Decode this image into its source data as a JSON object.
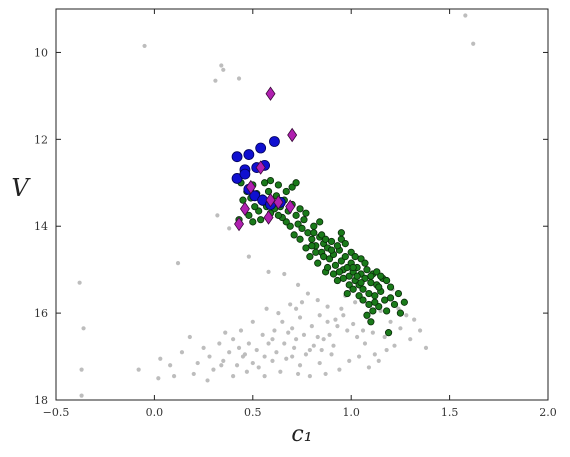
{
  "chart_data": {
    "type": "scatter",
    "title": "",
    "xlabel": "c₁",
    "ylabel": "V",
    "xlim": [
      -0.5,
      2.0
    ],
    "ylim": [
      18,
      9
    ],
    "y_inverted": true,
    "grid": false,
    "x_ticks": [
      -0.5,
      0.0,
      0.5,
      1.0,
      1.5,
      2.0
    ],
    "x_tick_labels": [
      "−0.5",
      "0.0",
      "0.5",
      "1.0",
      "1.5",
      "2.0"
    ],
    "y_ticks": [
      10,
      12,
      14,
      16,
      18
    ],
    "y_tick_labels": [
      "10",
      "12",
      "14",
      "16",
      "18"
    ],
    "series": [
      {
        "color": "#bdbdbd",
        "marker": "circle",
        "points": [
          [
            -0.05,
            9.85
          ],
          [
            1.58,
            9.15
          ],
          [
            1.62,
            9.8
          ],
          [
            0.34,
            10.3
          ],
          [
            0.35,
            10.4
          ],
          [
            0.43,
            10.6
          ],
          [
            0.31,
            10.65
          ],
          [
            -0.38,
            15.3
          ],
          [
            -0.36,
            16.35
          ],
          [
            -0.37,
            17.3
          ],
          [
            -0.37,
            17.9
          ],
          [
            0.12,
            14.85
          ],
          [
            0.32,
            13.75
          ],
          [
            0.38,
            14.05
          ],
          [
            0.48,
            14.7
          ],
          [
            0.58,
            15.05
          ],
          [
            0.66,
            15.1
          ],
          [
            0.73,
            15.35
          ],
          [
            0.78,
            15.55
          ],
          [
            0.72,
            15.9
          ],
          [
            0.83,
            15.7
          ],
          [
            0.88,
            15.85
          ],
          [
            0.95,
            15.9
          ],
          [
            1.02,
            15.75
          ],
          [
            1.08,
            16.1
          ],
          [
            1.15,
            15.95
          ],
          [
            1.2,
            16.2
          ],
          [
            1.24,
            15.9
          ],
          [
            1.28,
            16.05
          ],
          [
            1.35,
            16.4
          ],
          [
            1.38,
            16.8
          ],
          [
            1.3,
            16.6
          ],
          [
            1.22,
            16.75
          ],
          [
            1.18,
            16.85
          ],
          [
            1.12,
            16.95
          ],
          [
            1.07,
            16.7
          ],
          [
            1.03,
            16.55
          ],
          [
            0.98,
            16.4
          ],
          [
            0.93,
            16.3
          ],
          [
            0.88,
            16.2
          ],
          [
            0.84,
            16.05
          ],
          [
            0.8,
            16.3
          ],
          [
            0.76,
            16.5
          ],
          [
            0.72,
            16.6
          ],
          [
            0.68,
            16.45
          ],
          [
            0.65,
            16.2
          ],
          [
            0.61,
            16.4
          ],
          [
            0.58,
            16.7
          ],
          [
            0.55,
            16.5
          ],
          [
            0.52,
            16.85
          ],
          [
            0.48,
            16.7
          ],
          [
            0.45,
            17.0
          ],
          [
            0.42,
            17.2
          ],
          [
            0.38,
            16.9
          ],
          [
            0.35,
            17.1
          ],
          [
            0.33,
            16.7
          ],
          [
            0.3,
            17.3
          ],
          [
            0.28,
            17.0
          ],
          [
            0.25,
            16.8
          ],
          [
            0.22,
            17.15
          ],
          [
            0.18,
            16.55
          ],
          [
            0.14,
            16.9
          ],
          [
            0.08,
            17.2
          ],
          [
            0.03,
            17.05
          ],
          [
            -0.08,
            17.3
          ],
          [
            0.02,
            17.5
          ],
          [
            0.1,
            17.45
          ],
          [
            0.2,
            17.4
          ],
          [
            0.27,
            17.55
          ],
          [
            0.4,
            17.45
          ],
          [
            0.47,
            17.35
          ],
          [
            0.53,
            17.25
          ],
          [
            0.6,
            17.1
          ],
          [
            0.64,
            17.35
          ],
          [
            0.7,
            17.0
          ],
          [
            0.74,
            17.2
          ],
          [
            0.79,
            17.45
          ],
          [
            0.84,
            17.15
          ],
          [
            0.9,
            16.95
          ],
          [
            0.94,
            17.3
          ],
          [
            0.99,
            17.1
          ],
          [
            1.04,
            17.0
          ],
          [
            1.09,
            17.25
          ],
          [
            1.14,
            17.1
          ],
          [
            0.86,
            16.6
          ],
          [
            0.91,
            16.75
          ],
          [
            0.96,
            16.05
          ],
          [
            1.01,
            16.25
          ],
          [
            1.06,
            16.4
          ],
          [
            1.11,
            16.45
          ],
          [
            0.74,
            16.1
          ],
          [
            0.69,
            15.8
          ],
          [
            0.63,
            16.0
          ],
          [
            0.57,
            15.9
          ],
          [
            0.5,
            16.2
          ],
          [
            0.44,
            16.4
          ],
          [
            0.4,
            16.6
          ],
          [
            0.36,
            16.45
          ],
          [
            0.62,
            16.9
          ],
          [
            0.67,
            17.05
          ],
          [
            0.71,
            16.8
          ],
          [
            0.77,
            16.95
          ],
          [
            0.81,
            16.75
          ],
          [
            0.85,
            16.85
          ],
          [
            0.89,
            16.5
          ],
          [
            0.92,
            16.15
          ],
          [
            0.97,
            15.6
          ],
          [
            1.0,
            15.45
          ],
          [
            0.75,
            15.75
          ],
          [
            0.7,
            16.35
          ],
          [
            0.66,
            16.7
          ],
          [
            0.6,
            16.6
          ],
          [
            0.56,
            17.0
          ],
          [
            0.5,
            17.15
          ],
          [
            0.46,
            16.95
          ],
          [
            0.43,
            16.8
          ],
          [
            1.17,
            16.55
          ],
          [
            1.25,
            16.35
          ],
          [
            1.32,
            16.15
          ],
          [
            1.21,
            15.45
          ],
          [
            0.83,
            16.55
          ],
          [
            0.79,
            16.85
          ],
          [
            0.87,
            17.4
          ],
          [
            0.73,
            17.4
          ],
          [
            0.56,
            17.45
          ],
          [
            0.34,
            17.2
          ]
        ]
      },
      {
        "color": "#1a7a1a",
        "marker": "circle",
        "points": [
          [
            0.5,
            13.05
          ],
          [
            0.52,
            13.25
          ],
          [
            0.55,
            13.35
          ],
          [
            0.58,
            13.2
          ],
          [
            0.6,
            13.45
          ],
          [
            0.62,
            13.3
          ],
          [
            0.64,
            13.55
          ],
          [
            0.66,
            13.4
          ],
          [
            0.68,
            13.65
          ],
          [
            0.7,
            13.5
          ],
          [
            0.72,
            13.75
          ],
          [
            0.73,
            13.95
          ],
          [
            0.75,
            14.05
          ],
          [
            0.76,
            13.85
          ],
          [
            0.78,
            14.15
          ],
          [
            0.8,
            14.3
          ],
          [
            0.81,
            14.0
          ],
          [
            0.82,
            14.45
          ],
          [
            0.84,
            14.25
          ],
          [
            0.85,
            14.6
          ],
          [
            0.86,
            14.4
          ],
          [
            0.88,
            14.5
          ],
          [
            0.89,
            14.75
          ],
          [
            0.9,
            14.35
          ],
          [
            0.91,
            14.65
          ],
          [
            0.92,
            14.9
          ],
          [
            0.94,
            14.55
          ],
          [
            0.95,
            14.8
          ],
          [
            0.96,
            15.0
          ],
          [
            0.97,
            14.7
          ],
          [
            0.98,
            14.95
          ],
          [
            0.99,
            15.15
          ],
          [
            1.0,
            14.85
          ],
          [
            1.01,
            15.05
          ],
          [
            1.02,
            15.25
          ],
          [
            1.03,
            14.95
          ],
          [
            1.04,
            15.35
          ],
          [
            1.05,
            15.1
          ],
          [
            1.06,
            15.45
          ],
          [
            1.07,
            15.2
          ],
          [
            1.08,
            15.0
          ],
          [
            1.09,
            15.55
          ],
          [
            1.1,
            15.3
          ],
          [
            1.11,
            15.1
          ],
          [
            1.12,
            15.6
          ],
          [
            1.13,
            15.35
          ],
          [
            1.14,
            15.85
          ],
          [
            1.15,
            15.5
          ],
          [
            1.16,
            15.2
          ],
          [
            1.17,
            15.7
          ],
          [
            1.18,
            15.95
          ],
          [
            1.2,
            15.4
          ],
          [
            1.22,
            15.8
          ],
          [
            1.24,
            15.55
          ],
          [
            1.25,
            16.0
          ],
          [
            1.27,
            15.75
          ],
          [
            1.19,
            16.45
          ],
          [
            1.1,
            16.2
          ],
          [
            1.08,
            16.05
          ],
          [
            0.98,
            15.55
          ],
          [
            0.93,
            15.25
          ],
          [
            0.87,
            15.05
          ],
          [
            0.83,
            14.85
          ],
          [
            0.79,
            14.7
          ],
          [
            0.77,
            14.5
          ],
          [
            0.74,
            14.3
          ],
          [
            0.71,
            14.2
          ],
          [
            0.69,
            14.0
          ],
          [
            0.67,
            13.9
          ],
          [
            0.65,
            13.8
          ],
          [
            0.63,
            13.75
          ],
          [
            0.61,
            13.6
          ],
          [
            0.59,
            13.7
          ],
          [
            0.57,
            13.55
          ],
          [
            0.55,
            13.45
          ],
          [
            0.53,
            13.65
          ],
          [
            0.51,
            13.55
          ],
          [
            0.49,
            13.35
          ],
          [
            0.47,
            13.2
          ],
          [
            0.45,
            13.4
          ],
          [
            0.44,
            13.0
          ],
          [
            0.56,
            13.0
          ],
          [
            0.59,
            12.95
          ],
          [
            0.63,
            13.05
          ],
          [
            0.67,
            13.2
          ],
          [
            0.7,
            13.1
          ],
          [
            0.74,
            13.6
          ],
          [
            0.77,
            13.7
          ],
          [
            0.81,
            14.15
          ],
          [
            0.85,
            14.2
          ],
          [
            0.87,
            14.3
          ],
          [
            0.9,
            14.55
          ],
          [
            0.93,
            14.45
          ],
          [
            0.95,
            14.3
          ],
          [
            0.97,
            14.4
          ],
          [
            1.0,
            14.6
          ],
          [
            1.02,
            14.7
          ],
          [
            1.05,
            14.75
          ],
          [
            1.07,
            14.85
          ],
          [
            1.1,
            15.15
          ],
          [
            1.13,
            15.05
          ],
          [
            1.15,
            15.15
          ],
          [
            0.82,
            14.6
          ],
          [
            0.86,
            14.7
          ],
          [
            0.88,
            14.95
          ],
          [
            0.91,
            15.1
          ],
          [
            0.94,
            15.05
          ],
          [
            0.96,
            15.2
          ],
          [
            0.99,
            15.35
          ],
          [
            1.01,
            15.45
          ],
          [
            1.04,
            15.6
          ],
          [
            1.06,
            15.7
          ],
          [
            1.09,
            15.8
          ],
          [
            1.11,
            15.95
          ],
          [
            0.72,
            13.0
          ],
          [
            0.84,
            13.9
          ],
          [
            0.8,
            14.45
          ],
          [
            0.95,
            14.15
          ],
          [
            1.01,
            14.95
          ],
          [
            1.03,
            15.15
          ],
          [
            1.05,
            15.3
          ],
          [
            1.14,
            15.4
          ],
          [
            1.18,
            15.25
          ],
          [
            1.2,
            15.65
          ],
          [
            1.12,
            15.75
          ],
          [
            0.48,
            13.75
          ],
          [
            0.54,
            13.85
          ],
          [
            0.5,
            13.9
          ],
          [
            0.46,
            13.6
          ],
          [
            0.43,
            13.85
          ]
        ]
      },
      {
        "color": "#1010d0",
        "marker": "circle-large",
        "points": [
          [
            0.42,
            12.4
          ],
          [
            0.48,
            12.35
          ],
          [
            0.54,
            12.2
          ],
          [
            0.61,
            12.05
          ],
          [
            0.46,
            12.7
          ],
          [
            0.52,
            12.65
          ],
          [
            0.56,
            12.6
          ],
          [
            0.42,
            12.9
          ],
          [
            0.46,
            12.8
          ],
          [
            0.48,
            13.15
          ],
          [
            0.51,
            13.3
          ],
          [
            0.55,
            13.4
          ],
          [
            0.59,
            13.5
          ],
          [
            0.64,
            13.45
          ]
        ]
      },
      {
        "color": "#b020b0",
        "marker": "diamond",
        "points": [
          [
            0.59,
            10.95
          ],
          [
            0.7,
            11.9
          ],
          [
            0.54,
            12.65
          ],
          [
            0.49,
            13.1
          ],
          [
            0.46,
            13.6
          ],
          [
            0.59,
            13.4
          ],
          [
            0.63,
            13.45
          ],
          [
            0.58,
            13.8
          ],
          [
            0.69,
            13.55
          ],
          [
            0.43,
            13.95
          ]
        ]
      }
    ]
  }
}
